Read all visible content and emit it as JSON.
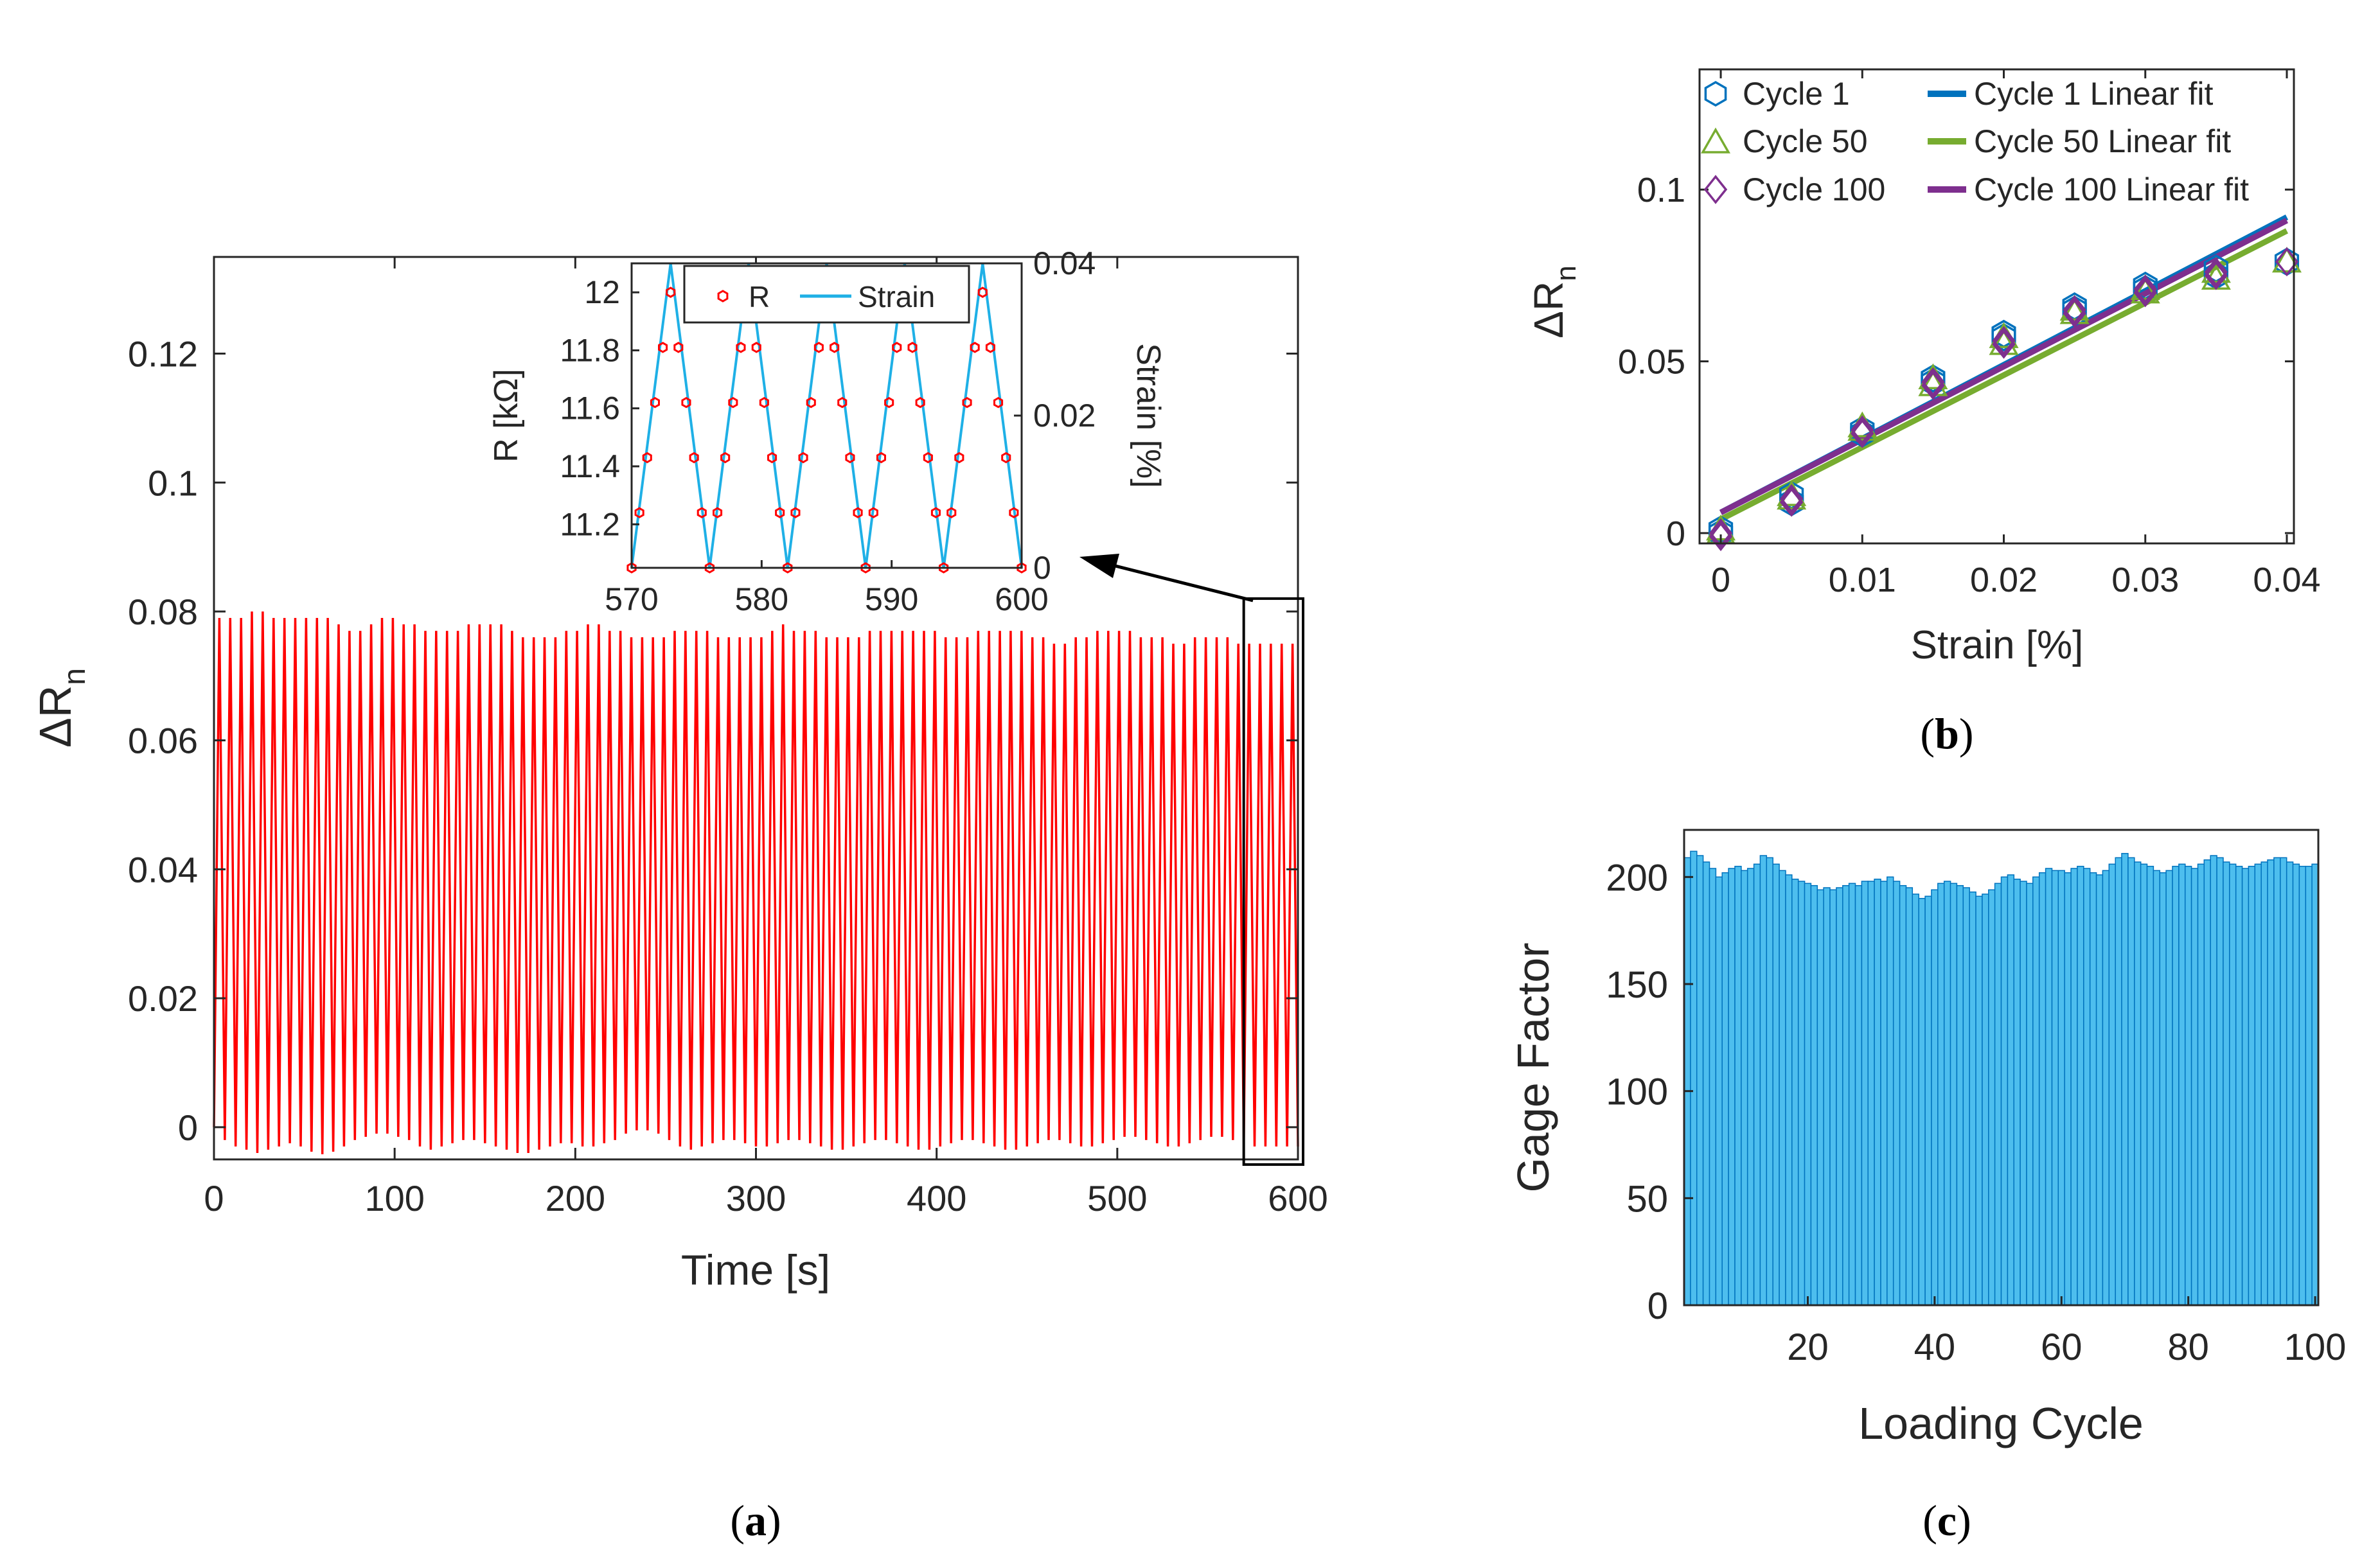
{
  "colors": {
    "axis": "#262626",
    "signal": "#ff0000",
    "strain": "#1fb0e6",
    "arrow": "#000000",
    "cycle1": "#0072bd",
    "cycle50": "#77ac30",
    "cycle100": "#7e2f8e",
    "bar_face": "#4dbeee",
    "bar_edge": "#0072bd"
  },
  "panels": {
    "a": {
      "caption_label": "a",
      "xlabel": "Time [s]",
      "ylabel_main": "ΔR",
      "ylabel_sub": "n",
      "inset": {
        "ylabel_left": "R [kΩ]",
        "ylabel_right": "Strain [%]",
        "legend": [
          "R",
          "Strain"
        ]
      }
    },
    "b": {
      "caption_label": "b",
      "xlabel": "Strain [%]",
      "ylabel_main": "ΔR",
      "ylabel_sub": "n",
      "legend": [
        "Cycle 1",
        "Cycle 50",
        "Cycle 100",
        "Cycle 1 Linear fit",
        "Cycle 50 Linear fit",
        "Cycle 100 Linear fit"
      ]
    },
    "c": {
      "caption_label": "c",
      "xlabel": "Loading Cycle",
      "ylabel": "Gage Factor"
    }
  },
  "chart_data": [
    {
      "id": "a",
      "type": "line",
      "xlabel": "Time [s]",
      "ylabel": "ΔRn",
      "xlim": [
        0,
        600
      ],
      "ylim": [
        -0.005,
        0.135
      ],
      "xticks": [
        0,
        100,
        200,
        300,
        400,
        500,
        600
      ],
      "yticks": [
        0,
        0.02,
        0.04,
        0.06,
        0.08,
        0.1,
        0.12
      ],
      "ytick_labels": [
        "0",
        "0.02",
        "0.04",
        "0.06",
        "0.08",
        "0.1",
        "0.12"
      ],
      "series": [
        {
          "name": "ΔRn",
          "cycle_period_s": 6,
          "start_value": 0,
          "peaks": [
            0.079,
            0.079,
            0.079,
            0.08,
            0.08,
            0.079,
            0.079,
            0.079,
            0.079,
            0.079,
            0.079,
            0.078,
            0.077,
            0.077,
            0.078,
            0.079,
            0.079,
            0.078,
            0.078,
            0.077,
            0.077,
            0.077,
            0.077,
            0.078,
            0.078,
            0.078,
            0.078,
            0.077,
            0.076,
            0.076,
            0.076,
            0.076,
            0.077,
            0.077,
            0.078,
            0.078,
            0.077,
            0.077,
            0.076,
            0.076,
            0.076,
            0.076,
            0.077,
            0.077,
            0.077,
            0.077,
            0.076,
            0.076,
            0.076,
            0.076,
            0.076,
            0.077,
            0.078,
            0.077,
            0.077,
            0.077,
            0.076,
            0.076,
            0.076,
            0.076,
            0.077,
            0.077,
            0.077,
            0.077,
            0.077,
            0.077,
            0.077,
            0.076,
            0.076,
            0.076,
            0.077,
            0.077,
            0.077,
            0.077,
            0.077,
            0.076,
            0.076,
            0.075,
            0.075,
            0.076,
            0.076,
            0.077,
            0.077,
            0.077,
            0.077,
            0.076,
            0.076,
            0.076,
            0.075,
            0.075,
            0.076,
            0.076,
            0.076,
            0.076,
            0.075,
            0.075,
            0.075,
            0.075,
            0.075,
            0.075
          ],
          "valleys": [
            -0.002,
            -0.003,
            -0.0035,
            -0.004,
            -0.0035,
            -0.003,
            -0.0025,
            -0.003,
            -0.0038,
            -0.0042,
            -0.0038,
            -0.003,
            -0.002,
            -0.0015,
            -0.001,
            -0.001,
            -0.0015,
            -0.002,
            -0.003,
            -0.0035,
            -0.003,
            -0.0025,
            -0.002,
            -0.002,
            -0.0025,
            -0.003,
            -0.0035,
            -0.004,
            -0.004,
            -0.0035,
            -0.003,
            -0.0025,
            -0.0025,
            -0.003,
            -0.003,
            -0.0025,
            -0.002,
            -0.001,
            -0.0005,
            -0.0005,
            -0.001,
            -0.002,
            -0.003,
            -0.0035,
            -0.003,
            -0.0025,
            -0.002,
            -0.002,
            -0.0025,
            -0.003,
            -0.003,
            -0.0025,
            -0.002,
            -0.002,
            -0.0025,
            -0.003,
            -0.0035,
            -0.0035,
            -0.003,
            -0.0025,
            -0.002,
            -0.002,
            -0.0025,
            -0.003,
            -0.0035,
            -0.0035,
            -0.003,
            -0.0025,
            -0.002,
            -0.002,
            -0.0025,
            -0.003,
            -0.0035,
            -0.0035,
            -0.003,
            -0.0025,
            -0.002,
            -0.002,
            -0.0025,
            -0.003,
            -0.003,
            -0.0025,
            -0.002,
            -0.0015,
            -0.0015,
            -0.002,
            -0.0025,
            -0.003,
            -0.003,
            -0.0025,
            -0.002,
            -0.0015,
            -0.0015,
            -0.002,
            -0.0025,
            -0.003,
            -0.003,
            -0.003,
            -0.003,
            -0.003
          ]
        }
      ],
      "zoom_box": {
        "xlim": [
          570,
          600
        ],
        "ylim": [
          -0.005,
          0.082
        ]
      },
      "inset": {
        "type": "line+scatter",
        "xlim": [
          570,
          600
        ],
        "ylim_left": [
          11.05,
          12.1
        ],
        "ylim_right": [
          0,
          0.04
        ],
        "xticks": [
          570,
          580,
          590,
          600
        ],
        "yticks_left": [
          11.2,
          11.4,
          11.6,
          11.8,
          12
        ],
        "ytick_labels_left": [
          "11.2",
          "11.4",
          "11.6",
          "11.8",
          "12"
        ],
        "yticks_right": [
          0,
          0.02,
          0.04
        ],
        "ytick_labels_right": [
          "0",
          "0.02",
          "0.04"
        ],
        "ylabel_left": "R [kΩ]",
        "ylabel_right": "Strain [%]",
        "series": [
          {
            "name": "R",
            "axis": "left",
            "marker": "hexagon",
            "valleys_t": [
              570,
              576,
              582,
              588,
              594,
              600
            ],
            "peaks_t": [
              573,
              579,
              585,
              591,
              597
            ],
            "min": 11.05,
            "max": 12.0,
            "sample_step_s": 0.6
          },
          {
            "name": "Strain",
            "axis": "right",
            "valleys_t": [
              570,
              576,
              582,
              588,
              594,
              600
            ],
            "peaks_t": [
              573,
              579,
              585,
              591,
              597
            ],
            "min": 0,
            "max": 0.04
          }
        ]
      }
    },
    {
      "id": "b",
      "type": "scatter",
      "xlabel": "Strain [%]",
      "ylabel": "ΔRn",
      "xlim": [
        -0.0015,
        0.0405
      ],
      "ylim": [
        -0.003,
        0.135
      ],
      "xticks": [
        0,
        0.01,
        0.02,
        0.03,
        0.04
      ],
      "xtick_labels": [
        "0",
        "0.01",
        "0.02",
        "0.03",
        "0.04"
      ],
      "yticks": [
        0,
        0.05,
        0.1
      ],
      "ytick_labels": [
        "0",
        "0.05",
        "0.1"
      ],
      "legend_position": "top",
      "series": [
        {
          "name": "Cycle 1",
          "marker": "hexagon",
          "x": [
            0,
            0,
            0.005,
            0.005,
            0.01,
            0.01,
            0.015,
            0.015,
            0.02,
            0.02,
            0.025,
            0.025,
            0.03,
            0.03,
            0.035,
            0.035,
            0.04
          ],
          "y": [
            0.0,
            0.001,
            0.009,
            0.011,
            0.029,
            0.03,
            0.044,
            0.045,
            0.057,
            0.058,
            0.065,
            0.066,
            0.071,
            0.072,
            0.075,
            0.077,
            0.079
          ]
        },
        {
          "name": "Cycle 50",
          "marker": "triangle",
          "x": [
            0,
            0,
            0.005,
            0.005,
            0.01,
            0.01,
            0.015,
            0.015,
            0.02,
            0.02,
            0.025,
            0.025,
            0.03,
            0.03,
            0.035,
            0.035,
            0.04
          ],
          "y": [
            0.0,
            0.001,
            0.01,
            0.011,
            0.03,
            0.031,
            0.043,
            0.045,
            0.055,
            0.057,
            0.064,
            0.065,
            0.07,
            0.071,
            0.074,
            0.076,
            0.079
          ]
        },
        {
          "name": "Cycle 100",
          "marker": "diamond",
          "x": [
            0,
            0,
            0.005,
            0.005,
            0.01,
            0.01,
            0.015,
            0.015,
            0.02,
            0.02,
            0.025,
            0.025,
            0.03,
            0.03,
            0.035,
            0.035,
            0.04
          ],
          "y": [
            -0.001,
            0.0,
            0.009,
            0.01,
            0.029,
            0.03,
            0.043,
            0.044,
            0.055,
            0.056,
            0.064,
            0.065,
            0.07,
            0.071,
            0.075,
            0.076,
            0.079
          ]
        },
        {
          "name": "Cycle 1 Linear fit",
          "type": "line",
          "x": [
            0,
            0.04
          ],
          "y": [
            0.006,
            0.092
          ]
        },
        {
          "name": "Cycle 50 Linear fit",
          "type": "line",
          "x": [
            0,
            0.04
          ],
          "y": [
            0.004,
            0.088
          ]
        },
        {
          "name": "Cycle 100 Linear fit",
          "type": "line",
          "x": [
            0,
            0.04
          ],
          "y": [
            0.006,
            0.091
          ]
        }
      ]
    },
    {
      "id": "c",
      "type": "bar",
      "xlabel": "Loading Cycle",
      "ylabel": "Gage Factor",
      "xlim": [
        0.5,
        100.5
      ],
      "ylim": [
        0,
        222
      ],
      "xticks": [
        20,
        40,
        60,
        80,
        100
      ],
      "yticks": [
        0,
        50,
        100,
        150,
        200
      ],
      "categories_range": [
        1,
        100
      ],
      "values": [
        209,
        212,
        210,
        207,
        204,
        200,
        202,
        204,
        205,
        203,
        204,
        206,
        210,
        209,
        206,
        203,
        201,
        199,
        198,
        197,
        196,
        194,
        195,
        194,
        195,
        196,
        197,
        196,
        198,
        198,
        199,
        198,
        200,
        198,
        196,
        195,
        192,
        190,
        191,
        194,
        197,
        198,
        197,
        196,
        195,
        193,
        191,
        192,
        194,
        197,
        200,
        201,
        199,
        198,
        197,
        200,
        202,
        204,
        203,
        203,
        202,
        204,
        205,
        204,
        202,
        201,
        203,
        206,
        209,
        211,
        209,
        207,
        206,
        205,
        203,
        202,
        203,
        205,
        206,
        205,
        204,
        206,
        208,
        210,
        209,
        207,
        206,
        205,
        204,
        205,
        206,
        207,
        208,
        209,
        209,
        207,
        206,
        205,
        205,
        206
      ]
    }
  ]
}
